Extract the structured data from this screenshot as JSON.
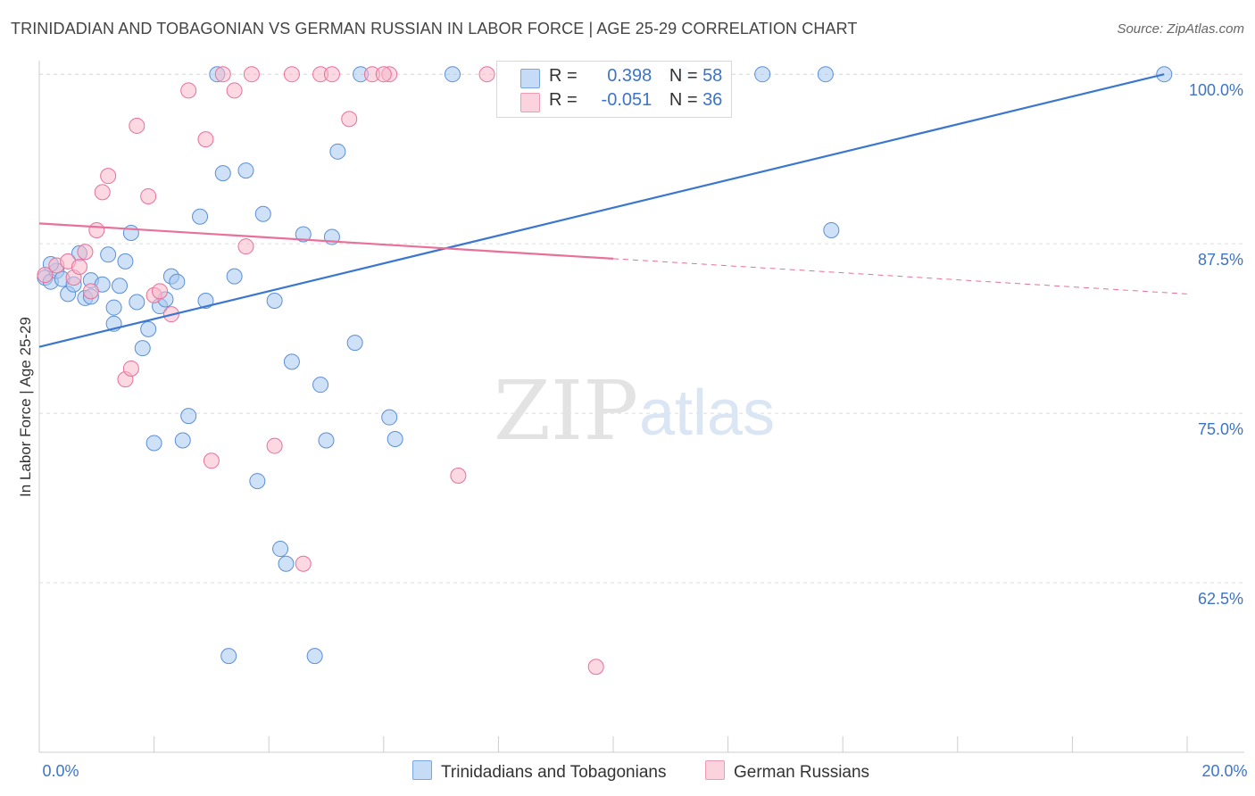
{
  "header": {
    "title": "TRINIDADIAN AND TOBAGONIAN VS GERMAN RUSSIAN IN LABOR FORCE | AGE 25-29 CORRELATION CHART",
    "source": "Source: ZipAtlas.com"
  },
  "watermark": {
    "zip": "ZIP",
    "atlas": "atlas"
  },
  "legend": {
    "rows": [
      {
        "r_label": "R =",
        "r_value": "0.398",
        "n_label": "N =",
        "n_value": "58",
        "color": "#a8c8f0"
      },
      {
        "r_label": "R =",
        "r_value": "-0.051",
        "n_label": "N =",
        "n_value": "36",
        "color": "#f7b8cb"
      }
    ]
  },
  "bottom_legend": [
    {
      "label": "Trinidadians and Tobagonians",
      "color": "#a8c8f0"
    },
    {
      "label": "German Russians",
      "color": "#f7b8cb"
    }
  ],
  "chart_data": {
    "type": "scatter",
    "ylabel": "In Labor Force | Age 25-29",
    "xlim": [
      0,
      20
    ],
    "ylim": [
      50,
      101
    ],
    "x_tick_labels": [
      "0.0%",
      "20.0%"
    ],
    "y_ticks": [
      62.5,
      75.0,
      87.5,
      100.0
    ],
    "y_tick_labels": [
      "62.5%",
      "75.0%",
      "87.5%",
      "100.0%"
    ],
    "grid": true,
    "series": [
      {
        "name": "Trinidadians and Tobagonians",
        "color": "#5b8fd6",
        "fill": "#a8c8f0",
        "trend": {
          "x0": 0,
          "y0": 79.9,
          "x1": 19.6,
          "y1": 100.0
        },
        "points": [
          [
            0.1,
            85.0
          ],
          [
            0.2,
            84.7
          ],
          [
            0.3,
            85.5
          ],
          [
            0.4,
            84.9
          ],
          [
            0.9,
            84.8
          ],
          [
            0.5,
            83.8
          ],
          [
            0.6,
            84.5
          ],
          [
            0.8,
            83.5
          ],
          [
            0.9,
            83.6
          ],
          [
            1.1,
            84.5
          ],
          [
            1.2,
            86.7
          ],
          [
            1.3,
            82.8
          ],
          [
            1.3,
            81.6
          ],
          [
            1.4,
            84.4
          ],
          [
            1.5,
            86.2
          ],
          [
            1.6,
            88.3
          ],
          [
            1.7,
            83.2
          ],
          [
            1.8,
            79.8
          ],
          [
            1.9,
            81.2
          ],
          [
            2.0,
            72.8
          ],
          [
            2.1,
            82.9
          ],
          [
            2.2,
            83.4
          ],
          [
            2.3,
            85.1
          ],
          [
            2.4,
            84.7
          ],
          [
            2.5,
            73.0
          ],
          [
            2.6,
            74.8
          ],
          [
            2.8,
            89.5
          ],
          [
            2.9,
            83.3
          ],
          [
            3.1,
            100.0
          ],
          [
            3.2,
            92.7
          ],
          [
            3.3,
            57.1
          ],
          [
            3.4,
            85.1
          ],
          [
            3.6,
            92.9
          ],
          [
            3.8,
            70.0
          ],
          [
            3.9,
            89.7
          ],
          [
            4.1,
            83.3
          ],
          [
            4.2,
            65.0
          ],
          [
            4.3,
            63.9
          ],
          [
            4.4,
            78.8
          ],
          [
            4.6,
            88.2
          ],
          [
            4.8,
            57.1
          ],
          [
            4.9,
            77.1
          ],
          [
            5.0,
            73.0
          ],
          [
            5.1,
            88.0
          ],
          [
            5.2,
            94.3
          ],
          [
            5.5,
            80.2
          ],
          [
            5.6,
            100.0
          ],
          [
            6.1,
            74.7
          ],
          [
            6.2,
            73.1
          ],
          [
            7.2,
            100.0
          ],
          [
            10.3,
            100.0
          ],
          [
            11.2,
            100.0
          ],
          [
            12.6,
            100.0
          ],
          [
            13.7,
            100.0
          ],
          [
            13.8,
            88.5
          ],
          [
            19.6,
            100.0
          ],
          [
            0.2,
            86.0
          ],
          [
            0.7,
            86.8
          ]
        ]
      },
      {
        "name": "German Russians",
        "color": "#e8709a",
        "fill": "#f7b8cb",
        "trend": {
          "x0": 0,
          "y0": 89.0,
          "x1": 10.0,
          "y1": 86.4,
          "x_ext": 20.0,
          "y_ext": 83.8
        },
        "points": [
          [
            0.1,
            85.2
          ],
          [
            0.3,
            85.9
          ],
          [
            0.5,
            86.2
          ],
          [
            0.6,
            85.0
          ],
          [
            0.7,
            85.8
          ],
          [
            0.8,
            86.9
          ],
          [
            0.9,
            84.0
          ],
          [
            1.0,
            88.5
          ],
          [
            1.1,
            91.3
          ],
          [
            1.2,
            92.5
          ],
          [
            1.5,
            77.5
          ],
          [
            1.6,
            78.3
          ],
          [
            1.7,
            96.2
          ],
          [
            1.9,
            91.0
          ],
          [
            2.0,
            83.7
          ],
          [
            2.1,
            84.0
          ],
          [
            2.3,
            82.3
          ],
          [
            2.6,
            98.8
          ],
          [
            2.9,
            95.2
          ],
          [
            3.0,
            71.5
          ],
          [
            3.2,
            100.0
          ],
          [
            3.4,
            98.8
          ],
          [
            3.6,
            87.3
          ],
          [
            3.7,
            100.0
          ],
          [
            4.1,
            72.6
          ],
          [
            4.4,
            100.0
          ],
          [
            4.6,
            63.9
          ],
          [
            4.9,
            100.0
          ],
          [
            5.1,
            100.0
          ],
          [
            5.4,
            96.7
          ],
          [
            5.8,
            100.0
          ],
          [
            6.1,
            100.0
          ],
          [
            7.3,
            70.4
          ],
          [
            7.8,
            100.0
          ],
          [
            9.7,
            56.3
          ],
          [
            6.0,
            100.0
          ]
        ]
      }
    ]
  }
}
